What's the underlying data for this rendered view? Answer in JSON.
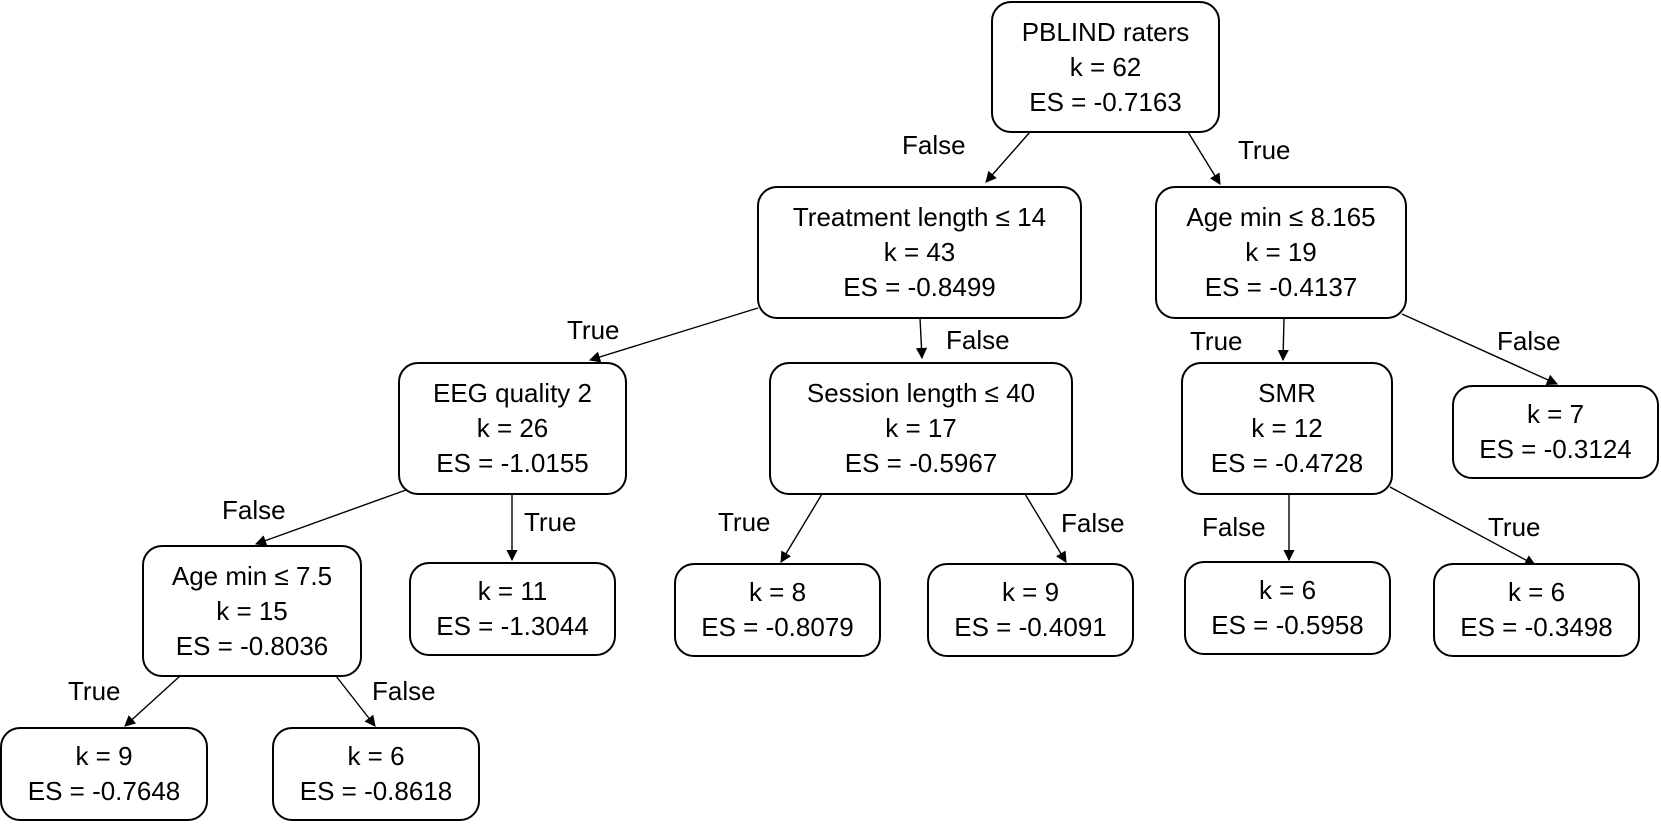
{
  "nodes": {
    "root": {
      "label": "PBLIND raters",
      "k": "k = 62",
      "es": "ES = -0.7163"
    },
    "treatment_length": {
      "label": "Treatment length ≤ 14",
      "k": "k = 43",
      "es": "ES = -0.8499"
    },
    "age_min_8165": {
      "label": "Age min ≤ 8.165",
      "k": "k = 19",
      "es": "ES = -0.4137"
    },
    "eeg_quality": {
      "label": "EEG quality 2",
      "k": "k = 26",
      "es": "ES = -1.0155"
    },
    "session_length": {
      "label": "Session length ≤ 40",
      "k": "k = 17",
      "es": "ES = -0.5967"
    },
    "smr": {
      "label": "SMR",
      "k": "k = 12",
      "es": "ES = -0.4728"
    },
    "leaf_k7": {
      "k": "k = 7",
      "es": "ES = -0.3124"
    },
    "age_min_75": {
      "label": "Age min ≤ 7.5",
      "k": "k = 15",
      "es": "ES = -0.8036"
    },
    "leaf_k11": {
      "k": "k = 11",
      "es": "ES = -1.3044"
    },
    "leaf_k8": {
      "k": "k = 8",
      "es": "ES = -0.8079"
    },
    "leaf_k9_session": {
      "k": "k = 9",
      "es": "ES = -0.4091"
    },
    "leaf_k6_smr_false": {
      "k": "k = 6",
      "es": "ES = -0.5958"
    },
    "leaf_k6_smr_true": {
      "k": "k = 6",
      "es": "ES = -0.3498"
    },
    "leaf_k9_age": {
      "k": "k = 9",
      "es": "ES = -0.7648"
    },
    "leaf_k6_age": {
      "k": "k = 6",
      "es": "ES = -0.8618"
    }
  },
  "edge_labels": {
    "root_to_treatment": "False",
    "root_to_agemin": "True",
    "treatment_to_eeg": "True",
    "treatment_to_session": "False",
    "agemin_to_smr": "True",
    "agemin_to_k7": "False",
    "eeg_to_agemin75": "False",
    "eeg_to_k11": "True",
    "session_to_k8": "True",
    "session_to_k9": "False",
    "smr_to_k6_false": "False",
    "smr_to_k6_true": "True",
    "agemin75_to_k9": "True",
    "agemin75_to_k6": "False"
  }
}
